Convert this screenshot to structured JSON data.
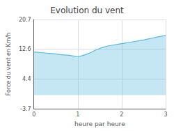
{
  "chart_data": {
    "type": "line",
    "title": "Evolution du vent",
    "xlabel": "heure par heure",
    "ylabel": "Force du vent en Km/h",
    "x": [
      0.0,
      0.1,
      0.2,
      0.3,
      0.4,
      0.5,
      0.6,
      0.7,
      0.8,
      0.9,
      1.0,
      1.1,
      1.2,
      1.3,
      1.4,
      1.5,
      1.6,
      1.7,
      1.8,
      1.9,
      2.0,
      2.1,
      2.2,
      2.3,
      2.4,
      2.5,
      2.6,
      2.7,
      2.8,
      2.9,
      3.0
    ],
    "values": [
      11.8,
      11.7,
      11.6,
      11.5,
      11.4,
      11.3,
      11.1,
      11.0,
      10.9,
      10.7,
      10.5,
      10.8,
      11.2,
      11.7,
      12.3,
      12.8,
      13.2,
      13.5,
      13.7,
      13.9,
      14.1,
      14.3,
      14.5,
      14.7,
      14.9,
      15.1,
      15.4,
      15.6,
      15.9,
      16.1,
      16.4
    ],
    "color": "#55bbdd",
    "xlim": [
      0,
      3
    ],
    "xticks": [
      0,
      1,
      2,
      3
    ],
    "ylim": [
      -3.7,
      20.7
    ],
    "yticks": [
      -3.7,
      4.4,
      12.6,
      20.7
    ],
    "grid": true
  }
}
